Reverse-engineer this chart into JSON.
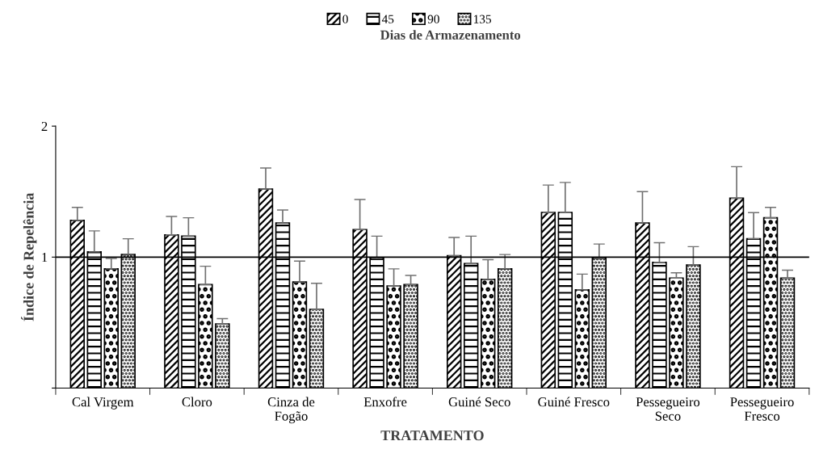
{
  "chart_data": {
    "type": "bar",
    "xlabel": "TRATAMENTO",
    "ylabel": "Índice de Repelência",
    "legend_title": "Dias de Armazenamento",
    "legend": "top",
    "categories": [
      "Cal Virgem",
      "Cloro",
      "Cinza de\nFogão",
      "Enxofre",
      "Guiné Seco",
      "Guiné Fresco",
      "Pessegueiro\nSeco",
      "Pessegueiro\nFresco"
    ],
    "series": [
      {
        "name": "0",
        "color": "#000000",
        "values": [
          1.28,
          1.17,
          1.52,
          1.21,
          1.01,
          1.34,
          1.26,
          1.45
        ],
        "errors": [
          0.1,
          0.14,
          0.16,
          0.23,
          0.14,
          0.21,
          0.24,
          0.24
        ]
      },
      {
        "name": "45",
        "color": "#000000",
        "values": [
          1.04,
          1.16,
          1.26,
          0.99,
          0.95,
          1.34,
          0.96,
          1.14
        ],
        "errors": [
          0.16,
          0.14,
          0.1,
          0.17,
          0.21,
          0.23,
          0.15,
          0.2
        ]
      },
      {
        "name": "90",
        "color": "#000000",
        "values": [
          0.91,
          0.79,
          0.81,
          0.78,
          0.83,
          0.75,
          0.84,
          1.3
        ],
        "errors": [
          0.08,
          0.14,
          0.16,
          0.13,
          0.15,
          0.12,
          0.04,
          0.08
        ]
      },
      {
        "name": "135",
        "color": "#000000",
        "values": [
          1.02,
          0.49,
          0.6,
          0.79,
          0.91,
          0.99,
          0.94,
          0.84
        ],
        "errors": [
          0.12,
          0.04,
          0.2,
          0.07,
          0.11,
          0.11,
          0.14,
          0.06
        ]
      }
    ],
    "ylim": [
      0,
      2
    ],
    "yticks": [
      {
        "value": 0,
        "label": null
      },
      1,
      2
    ],
    "grid": false,
    "ref_lines": [
      {
        "axis": "y",
        "value": 1,
        "color": "#000000"
      }
    ]
  }
}
